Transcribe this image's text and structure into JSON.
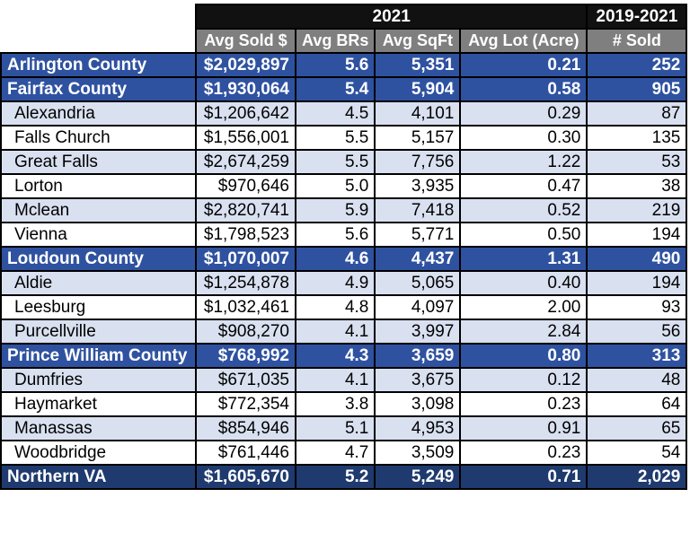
{
  "header": {
    "group_2021": "2021",
    "group_range": "2019-2021",
    "col_price": "Avg Sold $",
    "col_brs": "Avg BRs",
    "col_sqft": "Avg SqFt",
    "col_lot": "Avg Lot (Acre)",
    "col_sold": "# Sold"
  },
  "rows": [
    {
      "name": "Arlington County",
      "price": "$2,029,897",
      "brs": "5.6",
      "sqft": "5,351",
      "lot": "0.21",
      "sold": "252"
    },
    {
      "name": "Fairfax County",
      "price": "$1,930,064",
      "brs": "5.4",
      "sqft": "5,904",
      "lot": "0.58",
      "sold": "905"
    },
    {
      "name": "Alexandria",
      "price": "$1,206,642",
      "brs": "4.5",
      "sqft": "4,101",
      "lot": "0.29",
      "sold": "87"
    },
    {
      "name": "Falls Church",
      "price": "$1,556,001",
      "brs": "5.5",
      "sqft": "5,157",
      "lot": "0.30",
      "sold": "135"
    },
    {
      "name": "Great Falls",
      "price": "$2,674,259",
      "brs": "5.5",
      "sqft": "7,756",
      "lot": "1.22",
      "sold": "53"
    },
    {
      "name": "Lorton",
      "price": "$970,646",
      "brs": "5.0",
      "sqft": "3,935",
      "lot": "0.47",
      "sold": "38"
    },
    {
      "name": "Mclean",
      "price": "$2,820,741",
      "brs": "5.9",
      "sqft": "7,418",
      "lot": "0.52",
      "sold": "219"
    },
    {
      "name": "Vienna",
      "price": "$1,798,523",
      "brs": "5.6",
      "sqft": "5,771",
      "lot": "0.50",
      "sold": "194"
    },
    {
      "name": "Loudoun County",
      "price": "$1,070,007",
      "brs": "4.6",
      "sqft": "4,437",
      "lot": "1.31",
      "sold": "490"
    },
    {
      "name": "Aldie",
      "price": "$1,254,878",
      "brs": "4.9",
      "sqft": "5,065",
      "lot": "0.40",
      "sold": "194"
    },
    {
      "name": "Leesburg",
      "price": "$1,032,461",
      "brs": "4.8",
      "sqft": "4,097",
      "lot": "2.00",
      "sold": "93"
    },
    {
      "name": "Purcellville",
      "price": "$908,270",
      "brs": "4.1",
      "sqft": "3,997",
      "lot": "2.84",
      "sold": "56"
    },
    {
      "name": "Prince William County",
      "price": "$768,992",
      "brs": "4.3",
      "sqft": "3,659",
      "lot": "0.80",
      "sold": "313"
    },
    {
      "name": "Dumfries",
      "price": "$671,035",
      "brs": "4.1",
      "sqft": "3,675",
      "lot": "0.12",
      "sold": "48"
    },
    {
      "name": "Haymarket",
      "price": "$772,354",
      "brs": "3.8",
      "sqft": "3,098",
      "lot": "0.23",
      "sold": "64"
    },
    {
      "name": "Manassas",
      "price": "$854,946",
      "brs": "5.1",
      "sqft": "4,953",
      "lot": "0.91",
      "sold": "65"
    },
    {
      "name": "Woodbridge",
      "price": "$761,446",
      "brs": "4.7",
      "sqft": "3,509",
      "lot": "0.23",
      "sold": "54"
    },
    {
      "name": "Northern VA",
      "price": "$1,605,670",
      "brs": "5.2",
      "sqft": "5,249",
      "lot": "0.71",
      "sold": "2,029"
    }
  ]
}
